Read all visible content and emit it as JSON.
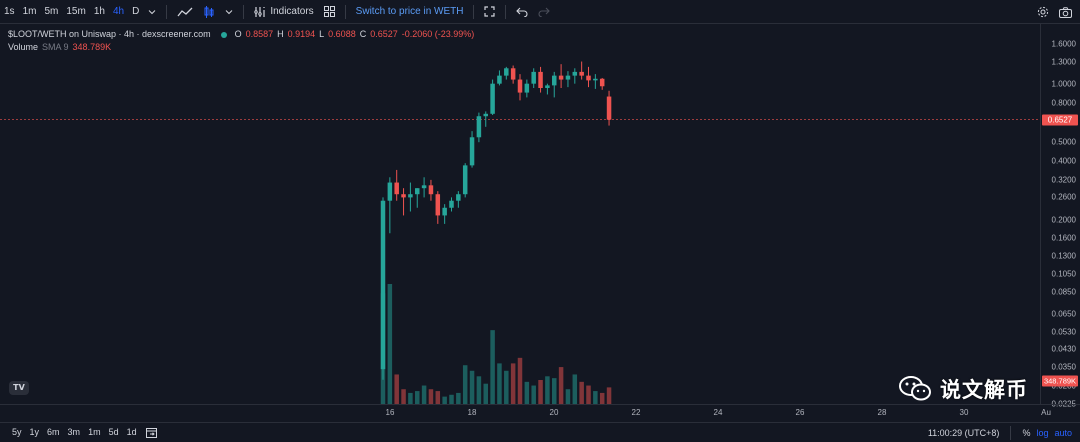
{
  "toolbar": {
    "timeframes": [
      "1s",
      "1m",
      "5m",
      "15m",
      "1h",
      "4h",
      "D"
    ],
    "active_timeframe": "4h",
    "indicators_label": "Indicators",
    "switch_label": "Switch to price in WETH"
  },
  "legend": {
    "pair": "$LOOT/WETH on Uniswap · 4h · dexscreener.com",
    "o_label": "O",
    "o": "0.8587",
    "h_label": "H",
    "h": "0.9194",
    "l_label": "L",
    "l": "0.6088",
    "c_label": "C",
    "c": "0.6527",
    "change": "-0.2060 (-23.99%)",
    "volume_label": "Volume",
    "sma_label": "SMA 9",
    "volume_value": "348.789K"
  },
  "price_axis": {
    "ticks": [
      "1.6000",
      "1.3000",
      "1.0000",
      "0.8000",
      "0.6527",
      "0.5000",
      "0.4000",
      "0.3200",
      "0.2600",
      "0.2000",
      "0.1600",
      "0.1300",
      "0.1050",
      "0.0850",
      "0.0650",
      "0.0530",
      "0.0430",
      "0.0350",
      "0.0280",
      "0.0225"
    ],
    "current_price": "0.6527",
    "volume_tag": "348.789K"
  },
  "time_axis": {
    "ticks": [
      "16",
      "18",
      "20",
      "22",
      "24",
      "26",
      "28",
      "30",
      "Au"
    ]
  },
  "bottom_bar": {
    "ranges": [
      "5y",
      "1y",
      "6m",
      "3m",
      "1m",
      "5d",
      "1d"
    ],
    "clock": "11:00:29 (UTC+8)",
    "percent": "%",
    "log": "log",
    "auto": "auto"
  },
  "watermark": {
    "text": "说文解币"
  },
  "logo": {
    "text": "TV"
  },
  "colors": {
    "up": "#26a69a",
    "down": "#ef5350",
    "background": "#131722",
    "accent": "#2962ff"
  },
  "chart_data": {
    "type": "candlestick",
    "scale": "log",
    "x_range": [
      "15.5",
      "31"
    ],
    "ylim": [
      0.0225,
      1.6
    ],
    "candles": [
      {
        "o": 0.034,
        "h": 0.26,
        "l": 0.03,
        "c": 0.25,
        "v": 0.6
      },
      {
        "o": 0.25,
        "h": 0.33,
        "l": 0.17,
        "c": 0.31,
        "v": 0.65
      },
      {
        "o": 0.31,
        "h": 0.36,
        "l": 0.25,
        "c": 0.27,
        "v": 0.16
      },
      {
        "o": 0.27,
        "h": 0.29,
        "l": 0.21,
        "c": 0.26,
        "v": 0.08
      },
      {
        "o": 0.26,
        "h": 0.31,
        "l": 0.22,
        "c": 0.27,
        "v": 0.06
      },
      {
        "o": 0.27,
        "h": 0.29,
        "l": 0.23,
        "c": 0.29,
        "v": 0.07
      },
      {
        "o": 0.29,
        "h": 0.33,
        "l": 0.26,
        "c": 0.3,
        "v": 0.1
      },
      {
        "o": 0.3,
        "h": 0.32,
        "l": 0.25,
        "c": 0.27,
        "v": 0.08
      },
      {
        "o": 0.27,
        "h": 0.28,
        "l": 0.19,
        "c": 0.21,
        "v": 0.07
      },
      {
        "o": 0.21,
        "h": 0.24,
        "l": 0.19,
        "c": 0.23,
        "v": 0.04
      },
      {
        "o": 0.23,
        "h": 0.26,
        "l": 0.22,
        "c": 0.25,
        "v": 0.05
      },
      {
        "o": 0.25,
        "h": 0.28,
        "l": 0.23,
        "c": 0.27,
        "v": 0.06
      },
      {
        "o": 0.27,
        "h": 0.39,
        "l": 0.26,
        "c": 0.38,
        "v": 0.21
      },
      {
        "o": 0.38,
        "h": 0.57,
        "l": 0.37,
        "c": 0.53,
        "v": 0.18
      },
      {
        "o": 0.53,
        "h": 0.71,
        "l": 0.5,
        "c": 0.68,
        "v": 0.15
      },
      {
        "o": 0.68,
        "h": 0.72,
        "l": 0.6,
        "c": 0.7,
        "v": 0.11
      },
      {
        "o": 0.7,
        "h": 1.05,
        "l": 0.69,
        "c": 1.0,
        "v": 0.4
      },
      {
        "o": 1.0,
        "h": 1.17,
        "l": 0.98,
        "c": 1.1,
        "v": 0.22
      },
      {
        "o": 1.1,
        "h": 1.22,
        "l": 1.05,
        "c": 1.2,
        "v": 0.18
      },
      {
        "o": 1.2,
        "h": 1.24,
        "l": 1.0,
        "c": 1.05,
        "v": 0.22
      },
      {
        "o": 1.05,
        "h": 1.12,
        "l": 0.82,
        "c": 0.9,
        "v": 0.25
      },
      {
        "o": 0.9,
        "h": 1.05,
        "l": 0.85,
        "c": 1.0,
        "v": 0.12
      },
      {
        "o": 1.0,
        "h": 1.2,
        "l": 0.95,
        "c": 1.15,
        "v": 0.1
      },
      {
        "o": 1.15,
        "h": 1.22,
        "l": 0.9,
        "c": 0.95,
        "v": 0.13
      },
      {
        "o": 0.95,
        "h": 1.0,
        "l": 0.88,
        "c": 0.98,
        "v": 0.15
      },
      {
        "o": 0.98,
        "h": 1.15,
        "l": 0.85,
        "c": 1.1,
        "v": 0.14
      },
      {
        "o": 1.1,
        "h": 1.26,
        "l": 0.95,
        "c": 1.05,
        "v": 0.2
      },
      {
        "o": 1.05,
        "h": 1.16,
        "l": 0.96,
        "c": 1.1,
        "v": 0.08
      },
      {
        "o": 1.1,
        "h": 1.2,
        "l": 1.0,
        "c": 1.15,
        "v": 0.16
      },
      {
        "o": 1.15,
        "h": 1.3,
        "l": 1.05,
        "c": 1.1,
        "v": 0.12
      },
      {
        "o": 1.1,
        "h": 1.22,
        "l": 0.96,
        "c": 1.04,
        "v": 0.1
      },
      {
        "o": 1.04,
        "h": 1.12,
        "l": 0.94,
        "c": 1.06,
        "v": 0.07
      },
      {
        "o": 1.06,
        "h": 1.07,
        "l": 0.93,
        "c": 0.97,
        "v": 0.06
      },
      {
        "o": 0.8587,
        "h": 0.9194,
        "l": 0.6088,
        "c": 0.6527,
        "v": 0.09
      }
    ]
  }
}
